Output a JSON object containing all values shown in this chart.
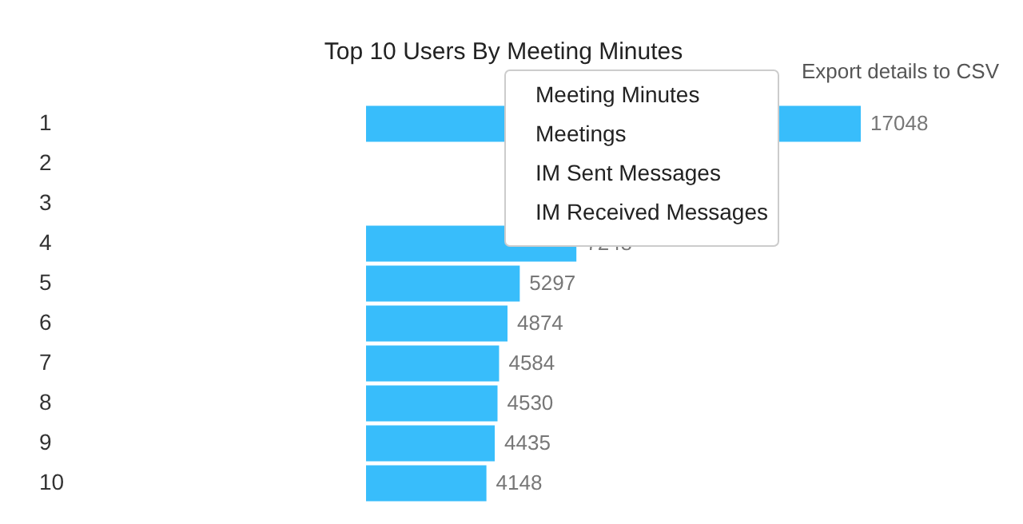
{
  "chart_data": {
    "type": "bar",
    "orientation": "horizontal",
    "title": "Top 10 Users By Meeting Minutes",
    "categories": [
      "1",
      "2",
      "3",
      "4",
      "5",
      "6",
      "7",
      "8",
      "9",
      "10"
    ],
    "values": [
      17048,
      null,
      null,
      7248,
      5297,
      4874,
      4584,
      4530,
      4435,
      4148
    ],
    "color": "#38bdfb",
    "data_labels": true,
    "grid": false,
    "annotations": [
      "Export details to CSV",
      "Meeting Minutes",
      "Meetings",
      "IM Sent Messages",
      "IM Received Messages"
    ]
  }
}
